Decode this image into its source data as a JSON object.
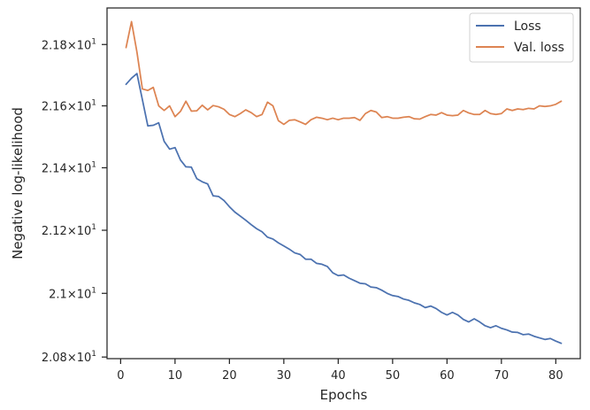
{
  "chart_data": {
    "type": "line",
    "xlabel": "Epochs",
    "ylabel": "Negative log-likelihood",
    "ylabel_scale": "log",
    "xlim": [
      -2.5,
      84.5
    ],
    "ylim": [
      20.795,
      21.92
    ],
    "xticks": [
      0,
      10,
      20,
      30,
      40,
      50,
      60,
      70,
      80
    ],
    "xtick_labels": [
      "0",
      "10",
      "20",
      "30",
      "40",
      "50",
      "60",
      "70",
      "80"
    ],
    "yticks": [
      20.8,
      21.0,
      21.2,
      21.4,
      21.6,
      21.8
    ],
    "ytick_mantissas": [
      "2.08",
      "2.1",
      "2.12",
      "2.14",
      "2.16",
      "2.18"
    ],
    "ytick_times": "×",
    "ytick_base": "10",
    "ytick_exponent": "1",
    "grid": false,
    "legend_position": "top-right",
    "x": [
      1,
      2,
      3,
      4,
      5,
      6,
      7,
      8,
      9,
      10,
      11,
      12,
      13,
      14,
      15,
      16,
      17,
      18,
      19,
      20,
      21,
      22,
      23,
      24,
      25,
      26,
      27,
      28,
      29,
      30,
      31,
      32,
      33,
      34,
      35,
      36,
      37,
      38,
      39,
      40,
      41,
      42,
      43,
      44,
      45,
      46,
      47,
      48,
      49,
      50,
      51,
      52,
      53,
      54,
      55,
      56,
      57,
      58,
      59,
      60,
      61,
      62,
      63,
      64,
      65,
      66,
      67,
      68,
      69,
      70,
      71,
      72,
      73,
      74,
      75,
      76,
      77,
      78,
      79,
      80,
      81
    ],
    "series": [
      {
        "name": "Loss",
        "color": "#4c72b0",
        "values": [
          21.67,
          21.69,
          21.705,
          21.62,
          21.535,
          21.537,
          21.545,
          21.485,
          21.46,
          21.465,
          21.425,
          21.403,
          21.402,
          21.365,
          21.355,
          21.348,
          21.31,
          21.308,
          21.295,
          21.275,
          21.258,
          21.245,
          21.232,
          21.218,
          21.205,
          21.195,
          21.178,
          21.172,
          21.16,
          21.15,
          21.14,
          21.128,
          21.123,
          21.108,
          21.108,
          21.095,
          21.092,
          21.085,
          21.065,
          21.056,
          21.058,
          21.048,
          21.04,
          21.032,
          21.03,
          21.02,
          21.018,
          21.01,
          21.0,
          20.993,
          20.99,
          20.982,
          20.978,
          20.97,
          20.965,
          20.955,
          20.96,
          20.952,
          20.94,
          20.932,
          20.94,
          20.932,
          20.918,
          20.91,
          20.92,
          20.91,
          20.898,
          20.892,
          20.898,
          20.89,
          20.885,
          20.878,
          20.877,
          20.87,
          20.872,
          20.865,
          20.86,
          20.855,
          20.858,
          20.85,
          20.843
        ]
      },
      {
        "name": "Val. loss",
        "color": "#dd8452",
        "values": [
          21.79,
          21.875,
          21.775,
          21.655,
          21.65,
          21.66,
          21.6,
          21.585,
          21.6,
          21.565,
          21.582,
          21.615,
          21.583,
          21.584,
          21.602,
          21.587,
          21.601,
          21.597,
          21.589,
          21.572,
          21.565,
          21.575,
          21.587,
          21.578,
          21.565,
          21.572,
          21.612,
          21.6,
          21.552,
          21.54,
          21.553,
          21.555,
          21.548,
          21.54,
          21.555,
          21.563,
          21.56,
          21.555,
          21.56,
          21.555,
          21.56,
          21.56,
          21.562,
          21.553,
          21.575,
          21.585,
          21.58,
          21.562,
          21.565,
          21.56,
          21.56,
          21.563,
          21.565,
          21.558,
          21.557,
          21.565,
          21.572,
          21.57,
          21.578,
          21.57,
          21.568,
          21.57,
          21.585,
          21.577,
          21.572,
          21.572,
          21.585,
          21.575,
          21.572,
          21.575,
          21.59,
          21.585,
          21.59,
          21.588,
          21.592,
          21.59,
          21.6,
          21.598,
          21.6,
          21.605,
          21.615
        ]
      }
    ]
  }
}
